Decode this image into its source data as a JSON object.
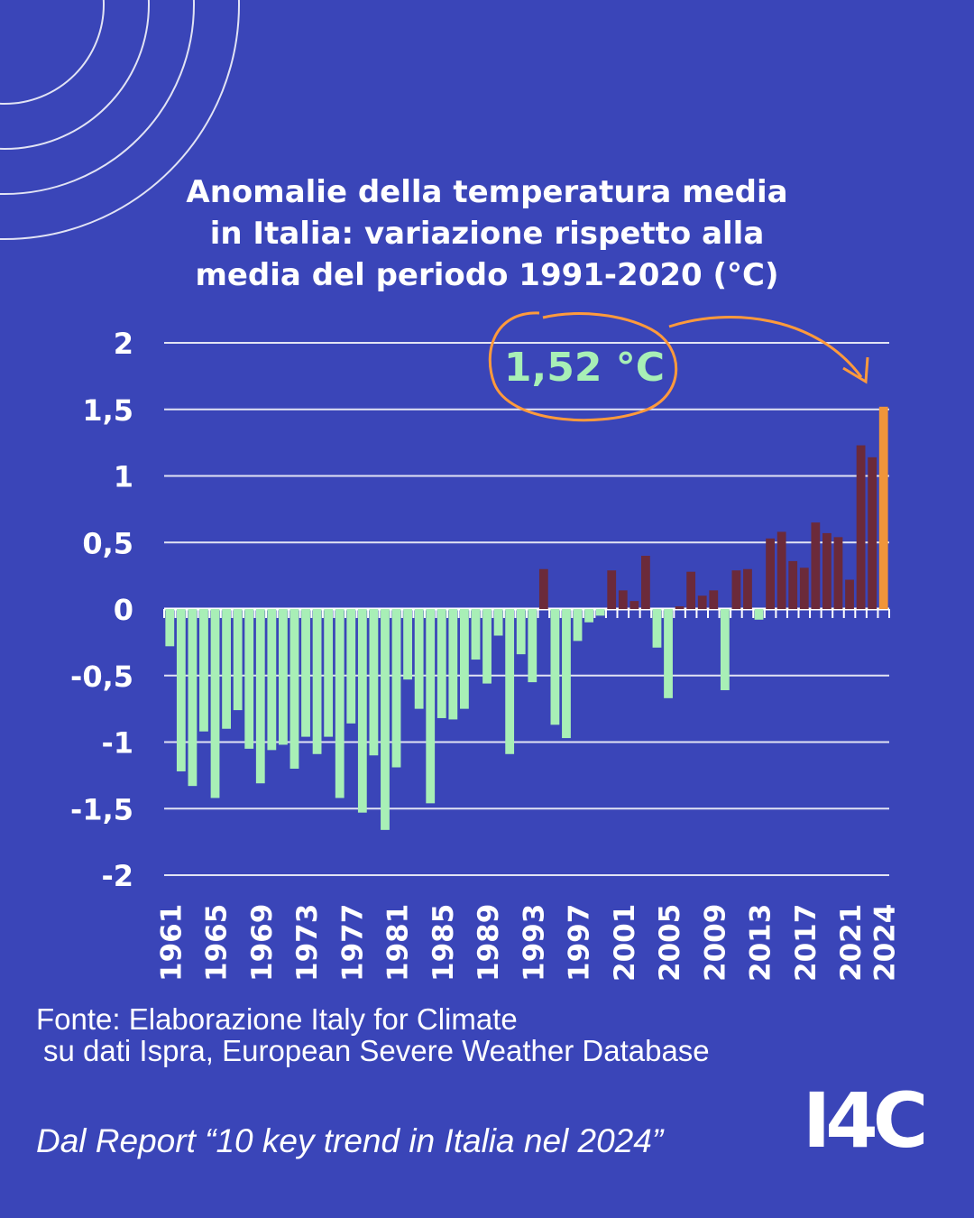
{
  "title_lines": [
    "Anomalie della temperatura media",
    "in Italia: variazione rispetto alla",
    "media del periodo 1991-2020 (°C)"
  ],
  "callout": {
    "label": "1,52 °C",
    "color": "#ff9a3c",
    "text_color": "#a8efb6"
  },
  "colors": {
    "background": "#3a45b8",
    "negative": "#a8efb6",
    "positive": "#6b2a3a",
    "highlight": "#f0953a",
    "grid": "#ffffff"
  },
  "chart_data": {
    "type": "bar",
    "title": "Anomalie della temperatura media in Italia: variazione rispetto alla media del periodo 1991-2020 (°C)",
    "xlabel": "",
    "ylabel": "",
    "ylim": [
      -2,
      2
    ],
    "grid": true,
    "ytick_labels": [
      "2",
      "1,5",
      "1",
      "0,5",
      "0",
      "-0,5",
      "-1",
      "-1,5",
      "-2"
    ],
    "ytick_values": [
      2,
      1.5,
      1,
      0.5,
      0,
      -0.5,
      -1,
      -1.5,
      -2
    ],
    "xtick_labels": [
      "1961",
      "1965",
      "1969",
      "1973",
      "1977",
      "1981",
      "1985",
      "1989",
      "1993",
      "1997",
      "2001",
      "2005",
      "2009",
      "2013",
      "2017",
      "2021",
      "2024"
    ],
    "categories": [
      "1961",
      "1962",
      "1963",
      "1964",
      "1965",
      "1966",
      "1967",
      "1968",
      "1969",
      "1970",
      "1971",
      "1972",
      "1973",
      "1974",
      "1975",
      "1976",
      "1977",
      "1978",
      "1979",
      "1980",
      "1981",
      "1982",
      "1983",
      "1984",
      "1985",
      "1986",
      "1987",
      "1988",
      "1989",
      "1990",
      "1991",
      "1992",
      "1993",
      "1994",
      "1995",
      "1996",
      "1997",
      "1998",
      "1999",
      "2000",
      "2001",
      "2002",
      "2003",
      "2004",
      "2005",
      "2006",
      "2007",
      "2008",
      "2009",
      "2010",
      "2011",
      "2012",
      "2013",
      "2014",
      "2015",
      "2016",
      "2017",
      "2018",
      "2019",
      "2020",
      "2021",
      "2022",
      "2023",
      "2024"
    ],
    "values": [
      -0.28,
      -1.22,
      -1.33,
      -0.92,
      -1.42,
      -0.9,
      -0.76,
      -1.05,
      -1.31,
      -1.06,
      -1.02,
      -1.2,
      -0.96,
      -1.09,
      -0.96,
      -1.42,
      -0.86,
      -1.53,
      -1.1,
      -1.66,
      -1.19,
      -0.53,
      -0.75,
      -1.46,
      -0.82,
      -0.83,
      -0.75,
      -0.38,
      -0.56,
      -0.2,
      -1.09,
      -0.34,
      -0.55,
      0.3,
      -0.87,
      -0.97,
      -0.24,
      -0.1,
      -0.05,
      0.29,
      0.14,
      0.06,
      0.4,
      -0.29,
      -0.67,
      0.02,
      0.28,
      0.1,
      0.14,
      -0.61,
      0.29,
      0.3,
      -0.08,
      0.53,
      0.58,
      0.36,
      0.31,
      0.65,
      0.57,
      0.54,
      0.22,
      1.23,
      1.14,
      1.52
    ],
    "highlight_category": "2024"
  },
  "source_lines": [
    "Fonte: Elaborazione Italy for Climate",
    "su dati Ispra, European Severe Weather Database"
  ],
  "report_text": "Dal Report “10 key trend in Italia nel 2024”",
  "logo_text": "I4C"
}
